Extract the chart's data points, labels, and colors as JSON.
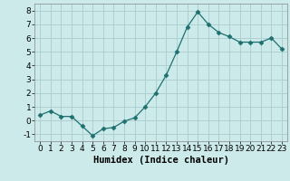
{
  "x": [
    0,
    1,
    2,
    3,
    4,
    5,
    6,
    7,
    8,
    9,
    10,
    11,
    12,
    13,
    14,
    15,
    16,
    17,
    18,
    19,
    20,
    21,
    22,
    23
  ],
  "y": [
    0.4,
    0.7,
    0.3,
    0.3,
    -0.4,
    -1.1,
    -0.6,
    -0.5,
    -0.05,
    0.2,
    1.0,
    2.0,
    3.3,
    5.0,
    6.8,
    7.9,
    7.0,
    6.4,
    6.1,
    5.7,
    5.7,
    5.7,
    6.0,
    5.2
  ],
  "xlabel": "Humidex (Indice chaleur)",
  "xlim": [
    -0.5,
    23.5
  ],
  "ylim": [
    -1.5,
    8.5
  ],
  "yticks": [
    -1,
    0,
    1,
    2,
    3,
    4,
    5,
    6,
    7,
    8
  ],
  "xticks": [
    0,
    1,
    2,
    3,
    4,
    5,
    6,
    7,
    8,
    9,
    10,
    11,
    12,
    13,
    14,
    15,
    16,
    17,
    18,
    19,
    20,
    21,
    22,
    23
  ],
  "line_color": "#1e7070",
  "marker": "D",
  "marker_size": 2.5,
  "bg_color": "#cceaea",
  "grid_color": "#aacccc",
  "xlabel_fontsize": 7.5,
  "tick_fontsize": 6.5
}
